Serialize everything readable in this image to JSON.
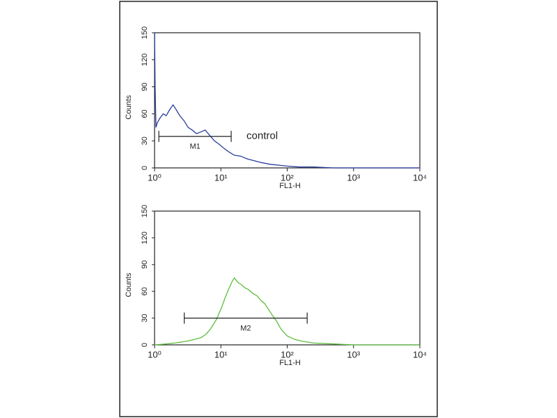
{
  "chart_data": [
    {
      "type": "line",
      "xlabel": "FL1-H",
      "ylabel": "Counts",
      "xlog": true,
      "color": "#2a3d9c",
      "x": [
        1,
        1.02,
        1.05,
        1.1,
        1.2,
        1.35,
        1.5,
        1.7,
        1.9,
        2.1,
        2.4,
        2.8,
        3.2,
        3.7,
        4.3,
        5,
        5.8,
        6.8,
        8,
        9.5,
        11,
        13,
        16,
        20,
        25,
        32,
        40,
        55,
        75,
        100,
        150,
        250,
        500,
        1000,
        3000,
        10000
      ],
      "values": [
        150,
        90,
        45,
        50,
        55,
        60,
        58,
        65,
        70,
        65,
        58,
        52,
        45,
        42,
        38,
        40,
        42,
        36,
        30,
        26,
        22,
        18,
        14,
        13,
        10,
        8,
        6,
        4,
        3,
        2,
        1,
        1,
        0,
        0,
        0,
        0
      ],
      "xlim": [
        1,
        10000
      ],
      "xticks": [
        {
          "value": 1,
          "label": "10⁰"
        },
        {
          "value": 10,
          "label": "10¹"
        },
        {
          "value": 100,
          "label": "10²"
        },
        {
          "value": 1000,
          "label": "10³"
        },
        {
          "value": 10000,
          "label": "10⁴"
        }
      ],
      "ylim": [
        0,
        150
      ],
      "yticks": [
        0,
        30,
        60,
        90,
        120,
        150
      ],
      "gate": {
        "label": "M1",
        "range": [
          1.16,
          14.3
        ],
        "y": 35
      },
      "annotation": "control"
    },
    {
      "type": "line",
      "xlabel": "FL1-H",
      "ylabel": "Counts",
      "xlog": true,
      "color": "#5bbd3c",
      "x": [
        1,
        1.5,
        2,
        3,
        4,
        5,
        6,
        7,
        8.5,
        10,
        11.5,
        13,
        15,
        16,
        18,
        20,
        23,
        26,
        30,
        35,
        40,
        46,
        52,
        60,
        70,
        80,
        100,
        130,
        170,
        250,
        500,
        1000,
        3000,
        10000
      ],
      "values": [
        0,
        1,
        2,
        4,
        6,
        8,
        12,
        18,
        28,
        40,
        52,
        62,
        72,
        75,
        70,
        68,
        64,
        62,
        58,
        55,
        50,
        46,
        40,
        33,
        26,
        18,
        10,
        6,
        4,
        2,
        1,
        0,
        0,
        0
      ],
      "xlim": [
        1,
        10000
      ],
      "xticks": [
        {
          "value": 1,
          "label": "10⁰"
        },
        {
          "value": 10,
          "label": "10¹"
        },
        {
          "value": 100,
          "label": "10²"
        },
        {
          "value": 1000,
          "label": "10³"
        },
        {
          "value": 10000,
          "label": "10⁴"
        }
      ],
      "ylim": [
        0,
        150
      ],
      "yticks": [
        0,
        30,
        60,
        90,
        120,
        150
      ],
      "gate": {
        "label": "M2",
        "range": [
          2.8,
          200
        ],
        "y": 30
      }
    }
  ]
}
